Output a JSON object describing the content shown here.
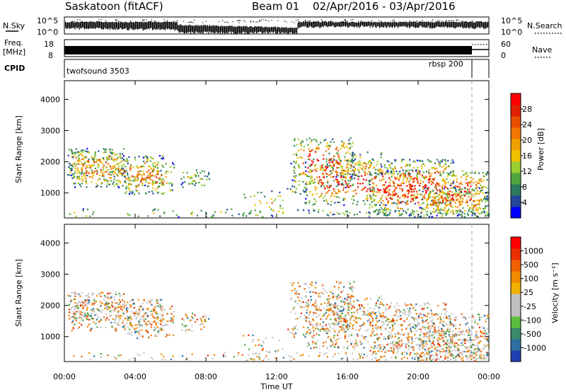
{
  "header": {
    "radar": "Saskatoon (fitACF)",
    "beam": "Beam 01",
    "dates": "02/Apr/2016 - 03/Apr/2016"
  },
  "strip": {
    "nsky_label": "N.Sky",
    "nsky_ticks": [
      "10^5",
      "10^0"
    ],
    "nsearch_label": "N.Search",
    "nsearch_ticks": [
      "10^5",
      "10^0"
    ],
    "freq_label_1": "Freq.",
    "freq_label_2": "[MHz]",
    "freq_ticks": [
      "18",
      "8"
    ],
    "nave_label": "Nave",
    "nave_ticks": [
      "60",
      "0"
    ],
    "cpid_label": "CPID",
    "cpid_1": "twofsound 3503",
    "cpid_2": "rbsp 200"
  },
  "panels": {
    "power": {
      "ylabel": "Slant Range [km]",
      "yticks": [
        "4000",
        "3000",
        "2000",
        "1000"
      ],
      "colorbar_label": "Power [dB]",
      "colorbar_ticks": [
        "28",
        "24",
        "20",
        "16",
        "12",
        "8",
        "4"
      ],
      "colors": [
        "#0000ff",
        "#24479c",
        "#2e7a5e",
        "#4fa640",
        "#9acd32",
        "#f0c000",
        "#f0a000",
        "#f07800",
        "#e85000",
        "#e02000",
        "#ff0000"
      ]
    },
    "velocity": {
      "ylabel": "Slant Range [km]",
      "yticks": [
        "4000",
        "3000",
        "2000",
        "1000"
      ],
      "colorbar_label": "Velocity [m s⁻¹]",
      "colorbar_ticks": [
        "1000",
        "500",
        "100",
        "25",
        "-25",
        "-100",
        "-500",
        "-1000"
      ],
      "colors": [
        "#1f3fb0",
        "#2e6fa0",
        "#3a8a6a",
        "#5cbf3c",
        "#bfbfbf",
        "#bfbfbf",
        "#f0b000",
        "#f08a00",
        "#f06000",
        "#e83000",
        "#ff0000"
      ]
    }
  },
  "xaxis": {
    "title": "Time UT",
    "ticks": [
      "00:00",
      "04:00",
      "08:00",
      "12:00",
      "16:00",
      "20:00",
      "00:00"
    ]
  }
}
